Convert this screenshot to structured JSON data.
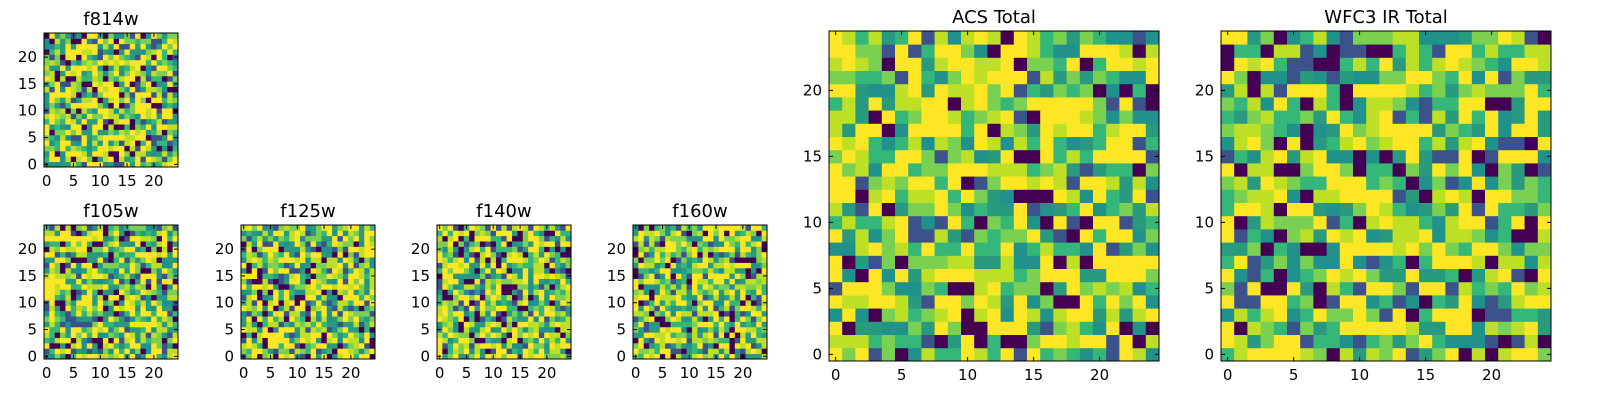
{
  "chart_data": [
    {
      "id": "f814w",
      "type": "heatmap",
      "title": "f814w",
      "nx": 25,
      "ny": 25,
      "xticks": [
        0,
        5,
        10,
        15,
        20
      ],
      "yticks": [
        0,
        5,
        10,
        15,
        20
      ],
      "xlim": [
        0,
        25
      ],
      "ylim": [
        0,
        25
      ],
      "values_note": "random-noise image; per-pixel values not recoverable"
    },
    {
      "id": "f105w",
      "type": "heatmap",
      "title": "f105w",
      "nx": 25,
      "ny": 25,
      "xticks": [
        0,
        5,
        10,
        15,
        20
      ],
      "yticks": [
        0,
        5,
        10,
        15,
        20
      ],
      "xlim": [
        0,
        25
      ],
      "ylim": [
        0,
        25
      ]
    },
    {
      "id": "f125w",
      "type": "heatmap",
      "title": "f125w",
      "nx": 25,
      "ny": 25,
      "xticks": [
        0,
        5,
        10,
        15,
        20
      ],
      "yticks": [
        0,
        5,
        10,
        15,
        20
      ],
      "xlim": [
        0,
        25
      ],
      "ylim": [
        0,
        25
      ]
    },
    {
      "id": "f140w",
      "type": "heatmap",
      "title": "f140w",
      "nx": 25,
      "ny": 25,
      "xticks": [
        0,
        5,
        10,
        15,
        20
      ],
      "yticks": [
        0,
        5,
        10,
        15,
        20
      ],
      "xlim": [
        0,
        25
      ],
      "ylim": [
        0,
        25
      ]
    },
    {
      "id": "f160w",
      "type": "heatmap",
      "title": "f160w",
      "nx": 25,
      "ny": 25,
      "xticks": [
        0,
        5,
        10,
        15,
        20
      ],
      "yticks": [
        0,
        5,
        10,
        15,
        20
      ],
      "xlim": [
        0,
        25
      ],
      "ylim": [
        0,
        25
      ]
    },
    {
      "id": "acs",
      "type": "heatmap",
      "title": "ACS Total",
      "nx": 25,
      "ny": 25,
      "xticks": [
        0,
        5,
        10,
        15,
        20
      ],
      "yticks": [
        0,
        5,
        10,
        15,
        20
      ],
      "xlim": [
        0,
        25
      ],
      "ylim": [
        0,
        25
      ]
    },
    {
      "id": "wfc3",
      "type": "heatmap",
      "title": "WFC3 IR Total",
      "nx": 25,
      "ny": 25,
      "xticks": [
        0,
        5,
        10,
        15,
        20
      ],
      "yticks": [
        0,
        5,
        10,
        15,
        20
      ],
      "xlim": [
        0,
        25
      ],
      "ylim": [
        0,
        25
      ]
    }
  ],
  "colormap": [
    "#440154",
    "#3b528b",
    "#21918c",
    "#2a9a7e",
    "#35b779",
    "#7ad151",
    "#bddf26",
    "#fde725"
  ]
}
